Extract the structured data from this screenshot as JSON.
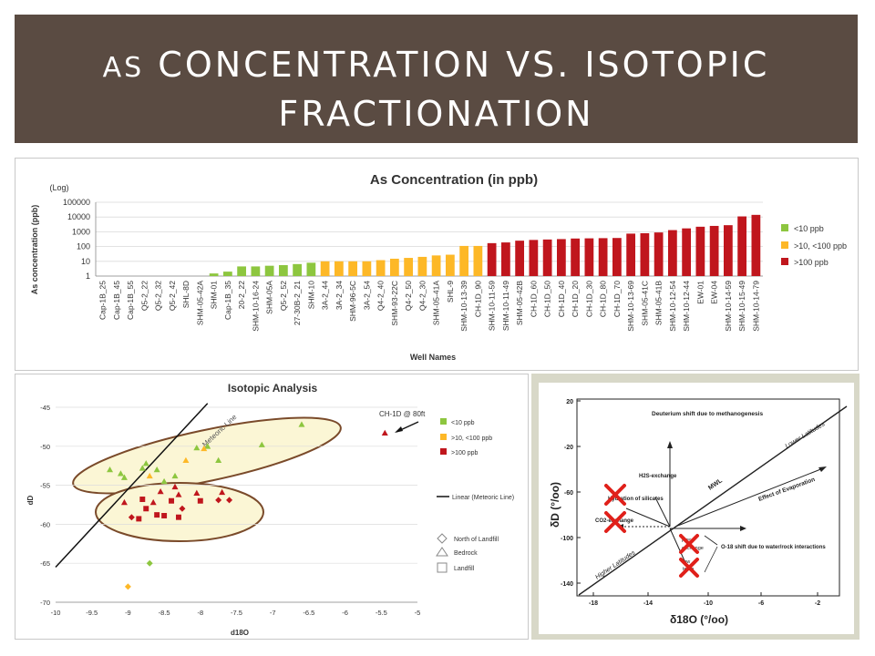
{
  "slide": {
    "title_line1_prefix": "As",
    "title_line1_rest": "CONCENTRATION VS. ISOTOPIC",
    "title_line2": "FRACTIONATION"
  },
  "legend_conc": [
    "<10 ppb",
    ">10, <100 ppb",
    ">100 ppb"
  ],
  "colors": {
    "green": "#8dc63f",
    "yellow": "#fdb827",
    "red": "#c0161d",
    "title_bg": "#5a4b42",
    "ellipse_fill": "#fbf6d5",
    "ellipse_stroke": "#7a4a2a"
  },
  "chart_data": [
    {
      "type": "bar",
      "title": "As Concentration (in ppb)",
      "log_note": "(Log)",
      "xlabel": "Well Names",
      "ylabel": "As concentration (ppb)",
      "yscale": "log",
      "ylim": [
        1,
        100000
      ],
      "yticks": [
        "1",
        "10",
        "100",
        "1000",
        "10000",
        "100000"
      ],
      "categories": [
        "Cap-1B_25",
        "Cap-1B_45",
        "Cap-1B_55",
        "Q5-2_22",
        "Q5-2_32",
        "Q5-2_42",
        "SHL-8D",
        "SHM-05-42A",
        "SHM-01",
        "Cap-1B_35",
        "20-2_22",
        "SHM-10-16-24",
        "SHM-05A",
        "Q5-2_52",
        "27-30B-2_21",
        "SHM-10",
        "3A-2_44",
        "3A-2_34",
        "SHM-96-5C",
        "3A-2_54",
        "Q4-2_40",
        "SHM-93-22C",
        "Q4-2_50",
        "Q4-2_30",
        "SHM-05-41A",
        "SHL-9",
        "SHM-10-13-39",
        "CH-1D_90",
        "SHM-10-11-59",
        "SHM-10-11-49",
        "SHM-05-42B",
        "CH-1D_60",
        "CH-1D_50",
        "CH-1D_40",
        "CH-1D_20",
        "CH-1D_30",
        "CH-1D_80",
        "CH-1D_70",
        "SHM-10-13-69",
        "SHM-05-41C",
        "SHM-05-41B",
        "SHM-10-12-54",
        "SHM-10-12-44",
        "EW-01",
        "EW-04",
        "SHM-10-14-59",
        "SHM-10-15-49",
        "SHM-10-14-79"
      ],
      "values": [
        1,
        1,
        1,
        1,
        1,
        1,
        1,
        1,
        1.5,
        2,
        4.5,
        4.5,
        5,
        5.5,
        6.5,
        8,
        10,
        10,
        10,
        10,
        12,
        15,
        17,
        20,
        25,
        28,
        110,
        110,
        170,
        190,
        250,
        280,
        300,
        320,
        350,
        360,
        370,
        380,
        750,
        800,
        900,
        1300,
        1700,
        2200,
        2500,
        2800,
        11000,
        14000
      ],
      "levels": [
        "none",
        "none",
        "none",
        "none",
        "none",
        "none",
        "none",
        "none",
        "green",
        "green",
        "green",
        "green",
        "green",
        "green",
        "green",
        "green",
        "yellow",
        "yellow",
        "yellow",
        "yellow",
        "yellow",
        "yellow",
        "yellow",
        "yellow",
        "yellow",
        "yellow",
        "yellow",
        "yellow",
        "red",
        "red",
        "red",
        "red",
        "red",
        "red",
        "red",
        "red",
        "red",
        "red",
        "red",
        "red",
        "red",
        "red",
        "red",
        "red",
        "red",
        "red",
        "red",
        "red"
      ]
    },
    {
      "type": "scatter",
      "title": "Isotopic Analysis",
      "xlabel": "d18O",
      "ylabel": "dD",
      "xlim": [
        -10,
        -5
      ],
      "ylim": [
        -70,
        -45
      ],
      "xticks": [
        "-10",
        "-9.5",
        "-9",
        "-8.5",
        "-8",
        "-7.5",
        "-7",
        "-6.5",
        "-6",
        "-5.5",
        "-5"
      ],
      "yticks": [
        "-45",
        "-50",
        "-55",
        "-60",
        "-65",
        "-70"
      ],
      "line_label": "Meteoric Line",
      "annotation": "CH-1D @ 80ft",
      "legend_colors": [
        "<10 ppb",
        ">10, <100 ppb",
        ">100 ppb"
      ],
      "legend_line": "Linear (Meteoric Line)",
      "legend_shapes": [
        "North of Landfill",
        "Bedrock",
        "Landfill"
      ],
      "meteoric_line": {
        "x": [
          -10,
          -7.9
        ],
        "y": [
          -65.5,
          -44.5
        ]
      },
      "points": [
        {
          "x": -9.25,
          "y": -53.0,
          "c": "green",
          "s": "tri"
        },
        {
          "x": -9.1,
          "y": -53.5,
          "c": "green",
          "s": "tri"
        },
        {
          "x": -9.05,
          "y": -54.0,
          "c": "green",
          "s": "tri"
        },
        {
          "x": -8.8,
          "y": -52.8,
          "c": "green",
          "s": "tri"
        },
        {
          "x": -8.75,
          "y": -52.2,
          "c": "green",
          "s": "tri"
        },
        {
          "x": -8.6,
          "y": -53.0,
          "c": "green",
          "s": "tri"
        },
        {
          "x": -8.5,
          "y": -54.5,
          "c": "green",
          "s": "tri"
        },
        {
          "x": -8.35,
          "y": -53.8,
          "c": "green",
          "s": "tri"
        },
        {
          "x": -8.05,
          "y": -50.2,
          "c": "green",
          "s": "tri"
        },
        {
          "x": -7.9,
          "y": -50.0,
          "c": "green",
          "s": "tri"
        },
        {
          "x": -7.75,
          "y": -51.8,
          "c": "green",
          "s": "tri"
        },
        {
          "x": -7.15,
          "y": -49.8,
          "c": "green",
          "s": "tri"
        },
        {
          "x": -6.6,
          "y": -47.2,
          "c": "green",
          "s": "tri"
        },
        {
          "x": -8.7,
          "y": -65.0,
          "c": "green",
          "s": "dia"
        },
        {
          "x": -8.7,
          "y": -53.8,
          "c": "yellow",
          "s": "tri"
        },
        {
          "x": -7.95,
          "y": -50.3,
          "c": "yellow",
          "s": "tri"
        },
        {
          "x": -8.2,
          "y": -51.8,
          "c": "yellow",
          "s": "tri"
        },
        {
          "x": -9.0,
          "y": -68.0,
          "c": "yellow",
          "s": "dia"
        },
        {
          "x": -9.05,
          "y": -57.2,
          "c": "red",
          "s": "tri"
        },
        {
          "x": -8.8,
          "y": -56.8,
          "c": "red",
          "s": "sq"
        },
        {
          "x": -8.75,
          "y": -58.0,
          "c": "red",
          "s": "sq"
        },
        {
          "x": -8.85,
          "y": -59.3,
          "c": "red",
          "s": "sq"
        },
        {
          "x": -8.65,
          "y": -57.2,
          "c": "red",
          "s": "tri"
        },
        {
          "x": -8.55,
          "y": -55.8,
          "c": "red",
          "s": "tri"
        },
        {
          "x": -8.6,
          "y": -58.8,
          "c": "red",
          "s": "sq"
        },
        {
          "x": -8.5,
          "y": -58.9,
          "c": "red",
          "s": "sq"
        },
        {
          "x": -8.4,
          "y": -57.0,
          "c": "red",
          "s": "sq"
        },
        {
          "x": -8.35,
          "y": -55.2,
          "c": "red",
          "s": "tri"
        },
        {
          "x": -8.3,
          "y": -56.2,
          "c": "red",
          "s": "tri"
        },
        {
          "x": -8.25,
          "y": -58.0,
          "c": "red",
          "s": "dia"
        },
        {
          "x": -8.3,
          "y": -59.1,
          "c": "red",
          "s": "sq"
        },
        {
          "x": -8.05,
          "y": -56.0,
          "c": "red",
          "s": "tri"
        },
        {
          "x": -8.0,
          "y": -57.0,
          "c": "red",
          "s": "sq"
        },
        {
          "x": -7.75,
          "y": -56.9,
          "c": "red",
          "s": "dia"
        },
        {
          "x": -7.7,
          "y": -55.9,
          "c": "red",
          "s": "tri"
        },
        {
          "x": -7.6,
          "y": -56.9,
          "c": "red",
          "s": "dia"
        },
        {
          "x": -8.95,
          "y": -59.1,
          "c": "red",
          "s": "dia"
        },
        {
          "x": -5.45,
          "y": -48.3,
          "c": "red",
          "s": "tri"
        }
      ]
    }
  ],
  "diagram": {
    "ylabel": "δD (°/oo)",
    "xlabel": "δ18O (°/oo)",
    "xticks": [
      "-18",
      "-14",
      "-10",
      "-6",
      "-2"
    ],
    "yticks": [
      "20",
      "-20",
      "-60",
      "-100",
      "-140"
    ],
    "labels": {
      "deuterium": "Deuterium shift due to methanogenesis",
      "h2s": "H2S-exchange",
      "hydration": "Hydration of silicates",
      "co2": "CO2-exchange",
      "mwl": "MWL",
      "evap": "Effect of Evaporation",
      "lower_lat": "Lower Latitudes",
      "higher_lat": "Higher Latitudes",
      "o18shift": "O-18 shift due to water/rock interactions",
      "h2s_small": "H2S",
      "exchange_small": "exchange",
      "low_small": "low",
      "temp_small": "temp"
    }
  }
}
